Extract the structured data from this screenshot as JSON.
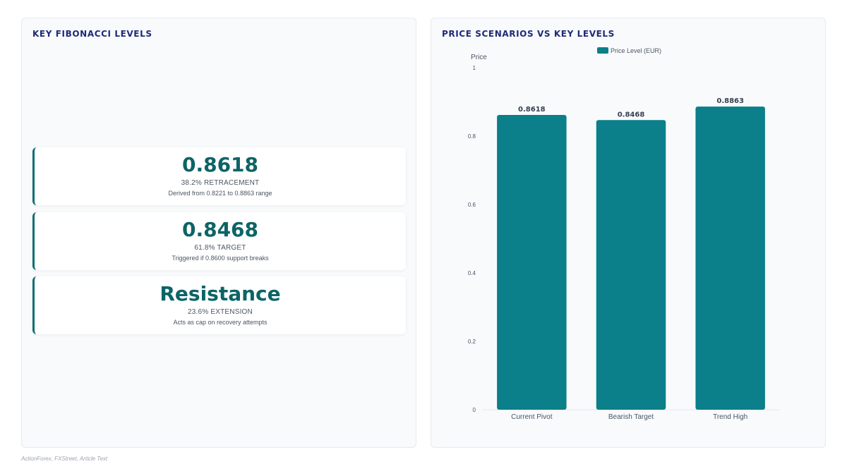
{
  "left_panel": {
    "title": "KEY FIBONACCI LEVELS",
    "cards": [
      {
        "value": "0.8618",
        "label": "38.2% RETRACEMENT",
        "desc": "Derived from 0.8221 to 0.8863 range"
      },
      {
        "value": "0.8468",
        "label": "61.8% TARGET",
        "desc": "Triggered if 0.8600 support breaks"
      },
      {
        "value": "Resistance",
        "label": "23.6% EXTENSION",
        "desc": "Acts as cap on recovery attempts"
      }
    ]
  },
  "right_panel": {
    "title": "PRICE SCENARIOS VS KEY LEVELS"
  },
  "source": "ActionForex, FXStreet, Article Text",
  "colors": {
    "accent": "#0b7f8a",
    "card_value": "#0d6466",
    "title": "#1e2a78"
  },
  "chart_data": {
    "type": "bar",
    "categories": [
      "Current Pivot",
      "Bearish Target",
      "Trend High"
    ],
    "series": [
      {
        "name": "Price Level (EUR)",
        "values": [
          0.8618,
          0.8468,
          0.8863
        ]
      }
    ],
    "data_labels": [
      "0.8618",
      "0.8468",
      "0.8863"
    ],
    "ylabel": "Price",
    "xlabel": "",
    "ylim": [
      0,
      1
    ],
    "yticks": [
      "0",
      "0.2",
      "0.4",
      "0.6",
      "0.8",
      "1"
    ],
    "grid": false,
    "legend_position": "top-center"
  }
}
